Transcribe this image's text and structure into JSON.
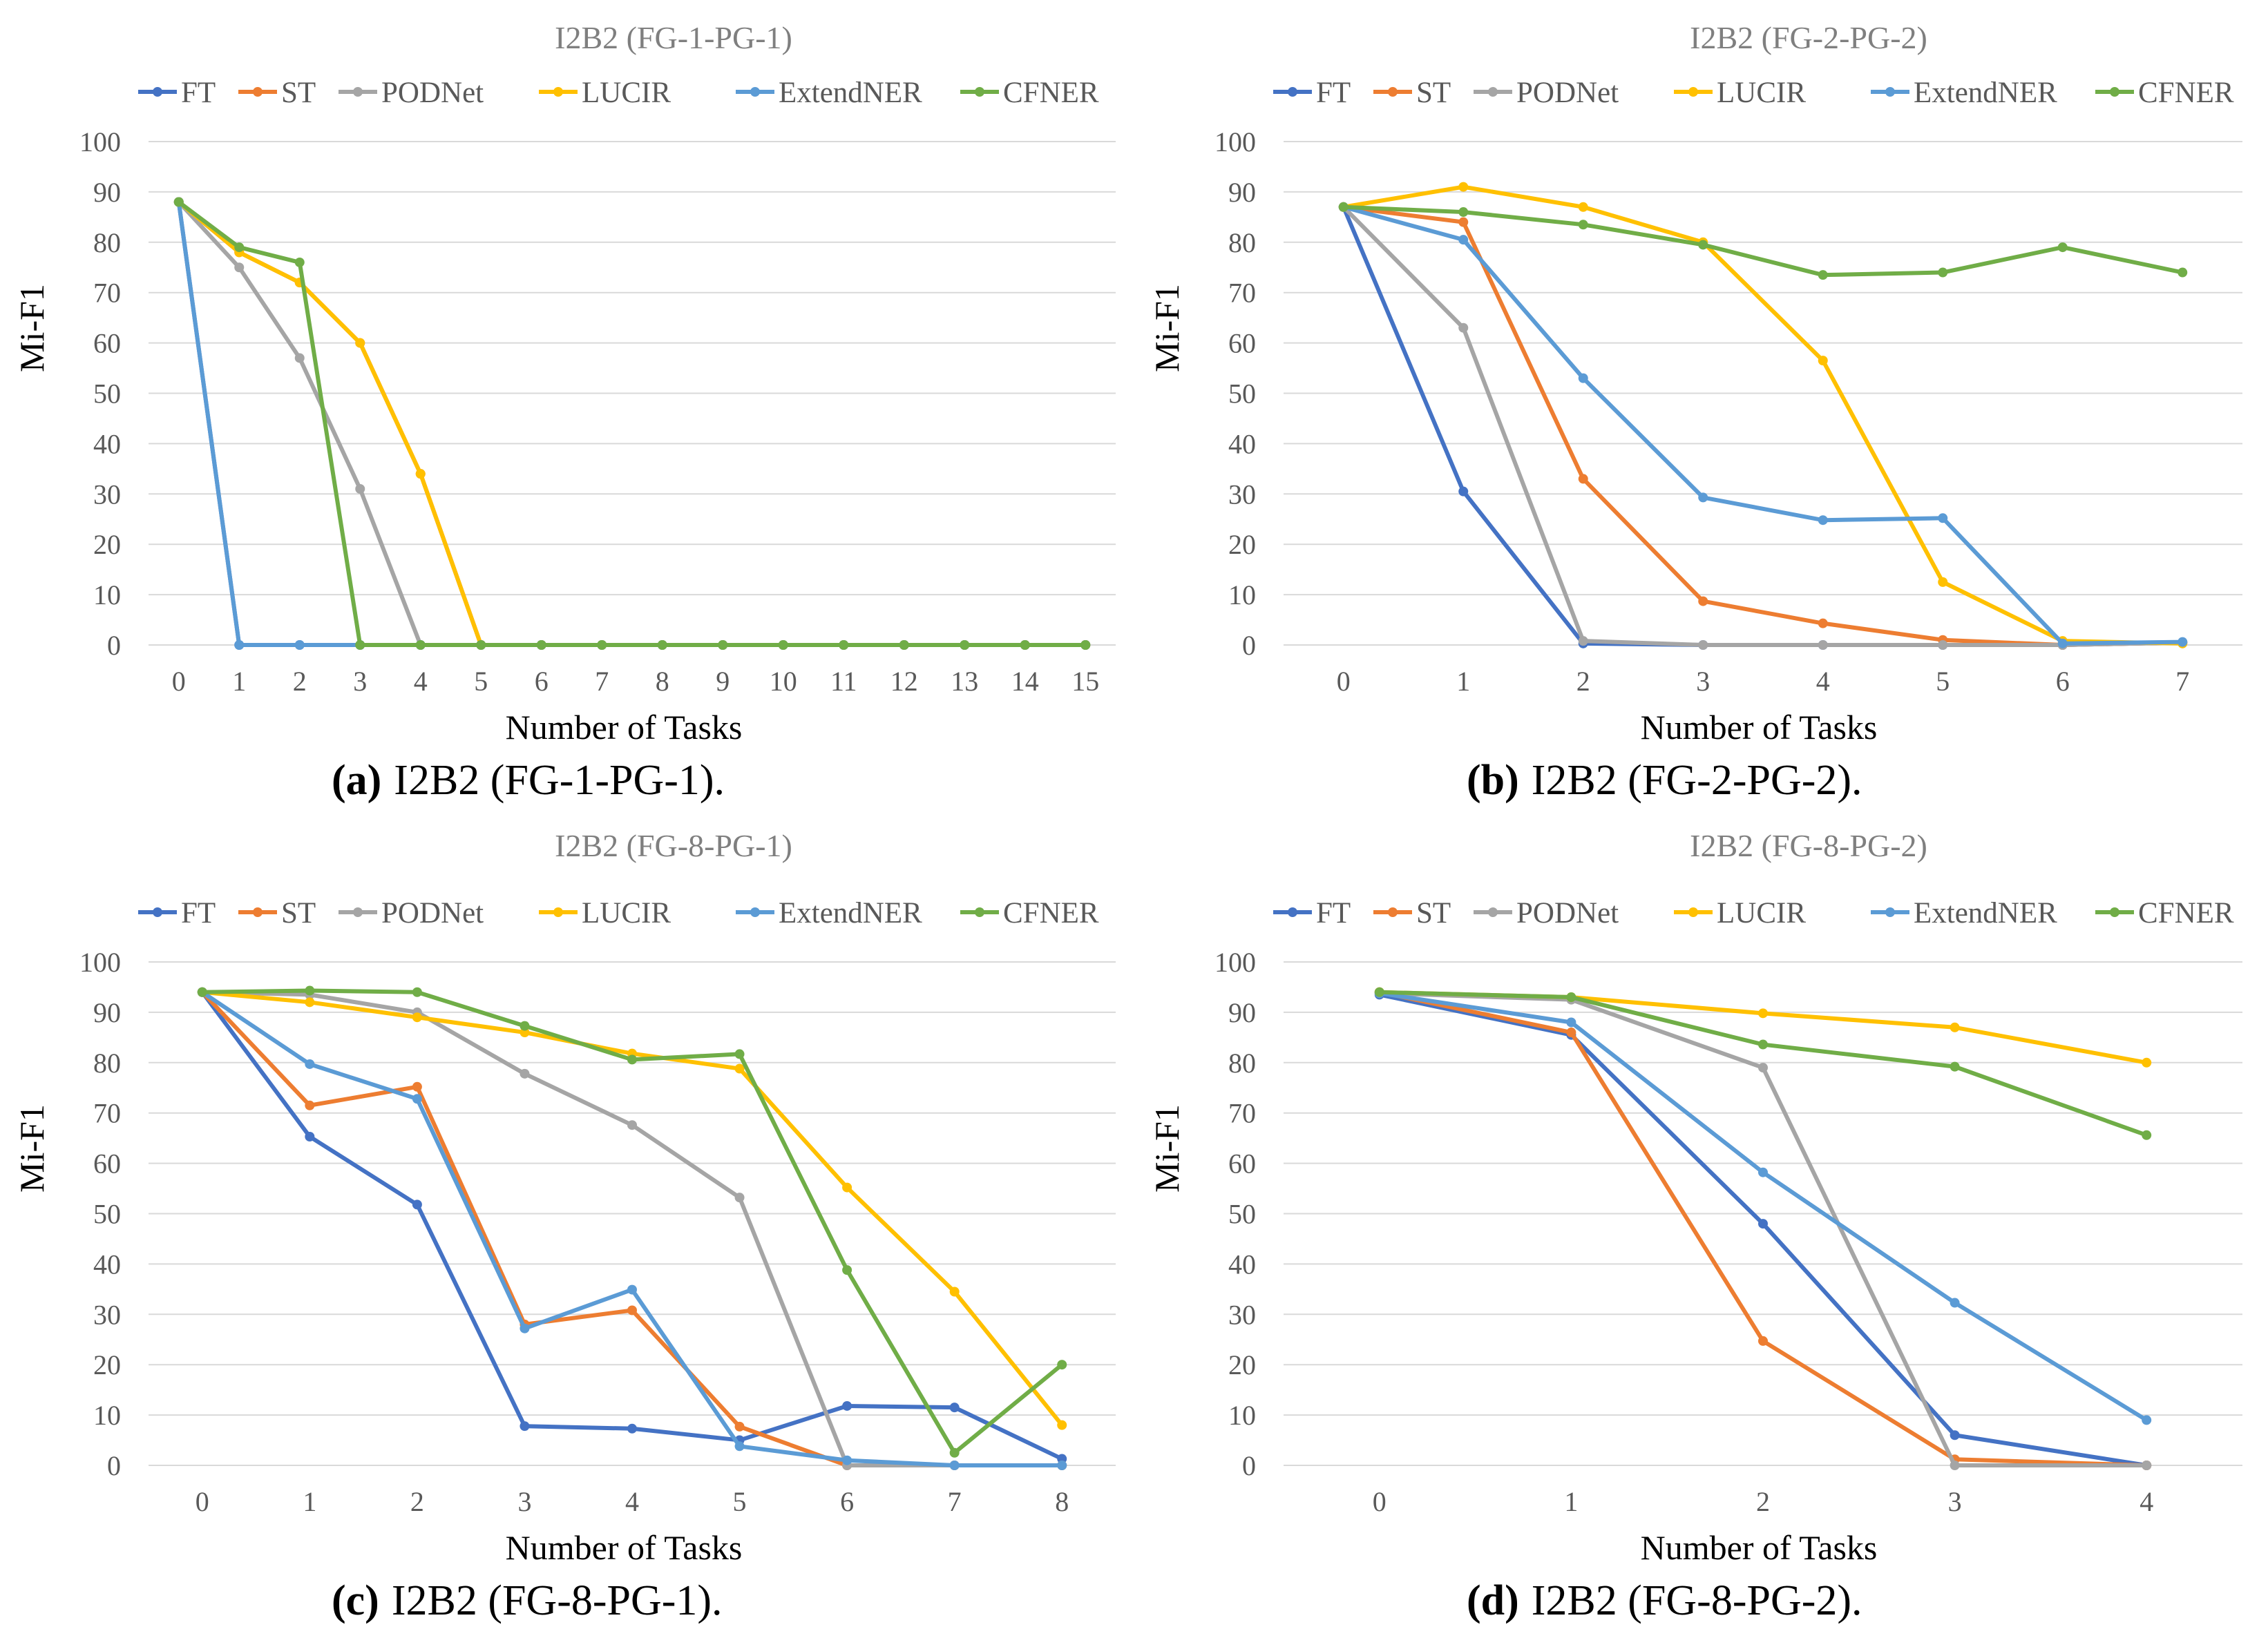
{
  "colors": {
    "FT": "#4472c4",
    "ST": "#ed7d31",
    "PODNet": "#a5a5a5",
    "LUCIR": "#ffc000",
    "ExtendNER": "#5b9bd5",
    "CFNER": "#70ad47"
  },
  "chart_data": [
    {
      "type": "line",
      "title": "I2B2 (FG-1-PG-1)",
      "caption_letter": "(a)",
      "caption_text": "I2B2 (FG-1-PG-1).",
      "xlabel": "Number of Tasks",
      "ylabel": "Mi-F1",
      "ylim": [
        0,
        100
      ],
      "yticks": [
        0,
        10,
        20,
        30,
        40,
        50,
        60,
        70,
        80,
        90,
        100
      ],
      "categories": [
        "0",
        "1",
        "2",
        "3",
        "4",
        "5",
        "6",
        "7",
        "8",
        "9",
        "10",
        "11",
        "12",
        "13",
        "14",
        "15"
      ],
      "series": [
        {
          "name": "FT",
          "values": [
            88,
            0,
            0,
            0,
            0,
            0,
            0,
            0,
            0,
            0,
            0,
            0,
            0,
            0,
            0,
            0
          ]
        },
        {
          "name": "ST",
          "values": [
            88,
            78,
            72,
            60,
            34,
            0,
            0,
            0,
            0,
            0,
            0,
            0,
            0,
            0,
            0,
            0
          ]
        },
        {
          "name": "PODNet",
          "values": [
            88,
            75,
            57,
            31,
            0,
            0,
            0,
            0,
            0,
            0,
            0,
            0,
            0,
            0,
            0,
            0
          ]
        },
        {
          "name": "LUCIR",
          "values": [
            88,
            78,
            72,
            60,
            34,
            0,
            0,
            0,
            0,
            0,
            0,
            0,
            0,
            0,
            0,
            0
          ]
        },
        {
          "name": "ExtendNER",
          "values": [
            88,
            0,
            0,
            0,
            0,
            0,
            0,
            0,
            0,
            0,
            0,
            0,
            0,
            0,
            0,
            0
          ]
        },
        {
          "name": "CFNER",
          "values": [
            88,
            79,
            76,
            0,
            0,
            0,
            0,
            0,
            0,
            0,
            0,
            0,
            0,
            0,
            0,
            0
          ]
        }
      ]
    },
    {
      "type": "line",
      "title": "I2B2 (FG-2-PG-2)",
      "caption_letter": "(b)",
      "caption_text": "I2B2 (FG-2-PG-2).",
      "xlabel": "Number of Tasks",
      "ylabel": "Mi-F1",
      "ylim": [
        0,
        100
      ],
      "yticks": [
        0,
        10,
        20,
        30,
        40,
        50,
        60,
        70,
        80,
        90,
        100
      ],
      "categories": [
        "0",
        "1",
        "2",
        "3",
        "4",
        "5",
        "6",
        "7"
      ],
      "series": [
        {
          "name": "FT",
          "values": [
            87,
            30.5,
            0.3,
            0,
            0,
            0,
            0,
            0.5
          ]
        },
        {
          "name": "ST",
          "values": [
            87,
            84,
            33,
            8.7,
            4.3,
            1,
            0,
            0.5
          ]
        },
        {
          "name": "PODNet",
          "values": [
            87,
            63,
            0.8,
            0,
            0,
            0,
            0,
            0.5
          ]
        },
        {
          "name": "LUCIR",
          "values": [
            87,
            91,
            87,
            80,
            56.5,
            12.5,
            0.8,
            0.3
          ]
        },
        {
          "name": "ExtendNER",
          "values": [
            87,
            80.5,
            53,
            29.3,
            24.8,
            25.2,
            0.3,
            0.6
          ]
        },
        {
          "name": "CFNER",
          "values": [
            87,
            86,
            83.5,
            79.5,
            73.5,
            74,
            79,
            74
          ]
        }
      ]
    },
    {
      "type": "line",
      "title": "I2B2 (FG-8-PG-1)",
      "caption_letter": "(c)",
      "caption_text": "I2B2 (FG-8-PG-1).",
      "xlabel": "Number of Tasks",
      "ylabel": "Mi-F1",
      "ylim": [
        0,
        100
      ],
      "yticks": [
        0,
        10,
        20,
        30,
        40,
        50,
        60,
        70,
        80,
        90,
        100
      ],
      "categories": [
        "0",
        "1",
        "2",
        "3",
        "4",
        "5",
        "6",
        "7",
        "8"
      ],
      "series": [
        {
          "name": "FT",
          "values": [
            94,
            65.3,
            51.8,
            7.8,
            7.3,
            5,
            11.8,
            11.5,
            1.3
          ]
        },
        {
          "name": "ST",
          "values": [
            94,
            71.5,
            75.2,
            28,
            30.8,
            7.7,
            0,
            0,
            0
          ]
        },
        {
          "name": "PODNet",
          "values": [
            94,
            93.5,
            90,
            77.8,
            67.6,
            53.2,
            0,
            0,
            0
          ]
        },
        {
          "name": "LUCIR",
          "values": [
            94,
            92,
            89,
            86,
            81.8,
            78.8,
            55.2,
            34.5,
            8
          ]
        },
        {
          "name": "ExtendNER",
          "values": [
            94,
            79.7,
            72.8,
            27.2,
            34.9,
            3.8,
            1,
            0,
            0
          ]
        },
        {
          "name": "CFNER",
          "values": [
            94,
            94.3,
            94,
            87.3,
            80.6,
            81.7,
            38.8,
            2.5,
            20
          ]
        }
      ]
    },
    {
      "type": "line",
      "title": "I2B2 (FG-8-PG-2)",
      "caption_letter": "(d)",
      "caption_text": "I2B2 (FG-8-PG-2).",
      "xlabel": "Number of Tasks",
      "ylabel": "Mi-F1",
      "ylim": [
        0,
        100
      ],
      "yticks": [
        0,
        10,
        20,
        30,
        40,
        50,
        60,
        70,
        80,
        90,
        100
      ],
      "categories": [
        "0",
        "1",
        "2",
        "3",
        "4"
      ],
      "series": [
        {
          "name": "FT",
          "values": [
            93.5,
            85.5,
            48,
            6,
            0
          ]
        },
        {
          "name": "ST",
          "values": [
            94,
            86,
            24.7,
            1.2,
            0
          ]
        },
        {
          "name": "PODNet",
          "values": [
            93.8,
            92.5,
            79,
            0,
            0
          ]
        },
        {
          "name": "LUCIR",
          "values": [
            94,
            93,
            89.8,
            87,
            80
          ]
        },
        {
          "name": "ExtendNER",
          "values": [
            93.8,
            88,
            58.2,
            32.3,
            9
          ]
        },
        {
          "name": "CFNER",
          "values": [
            94,
            93,
            83.6,
            79.2,
            65.6
          ]
        }
      ]
    }
  ]
}
